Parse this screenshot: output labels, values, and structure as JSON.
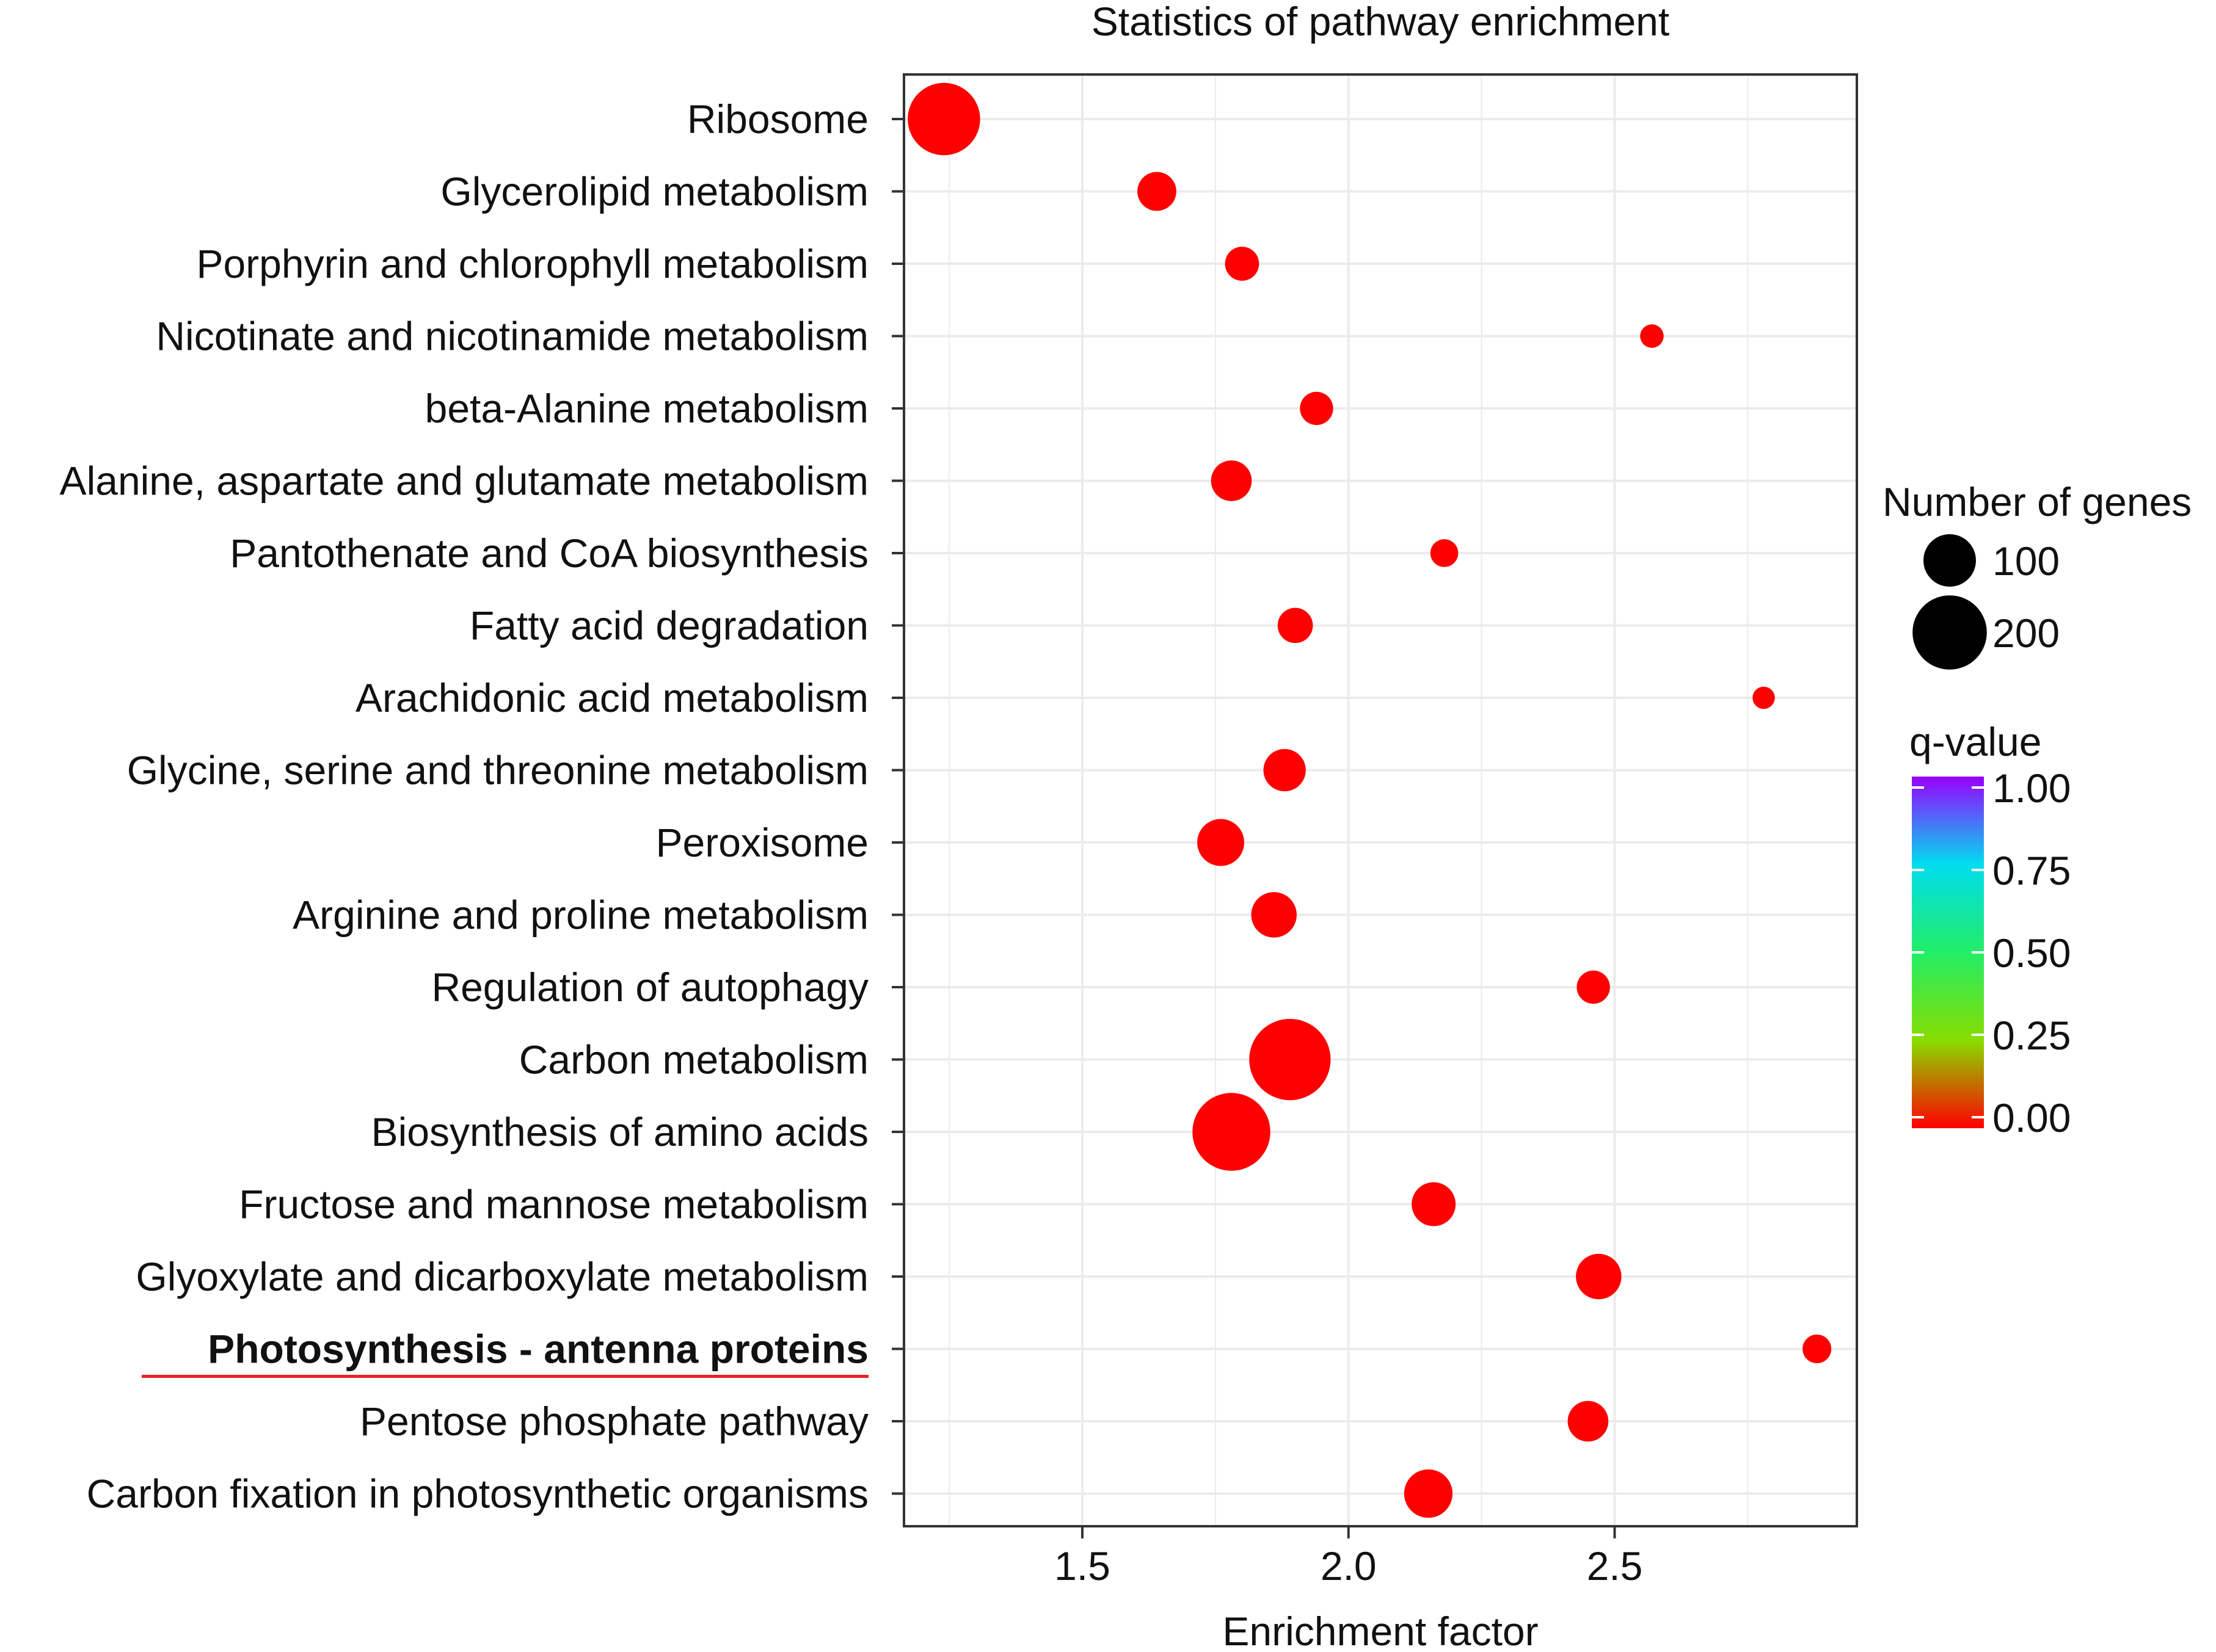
{
  "chart_data": {
    "type": "scatter",
    "title": "Statistics of pathway enrichment",
    "xlabel": "Enrichment factor",
    "ylabel": "",
    "xlim": [
      1.165,
      2.955
    ],
    "xticks": [
      1.5,
      2.0,
      2.5
    ],
    "xtick_labels": [
      "1.5",
      "2.0",
      "2.5"
    ],
    "grid": true,
    "highlighted_category": "Photosynthesis - antenna proteins",
    "categories": [
      "Ribosome",
      "Glycerolipid metabolism",
      "Porphyrin and chlorophyll metabolism",
      "Nicotinate and nicotinamide metabolism",
      "beta-Alanine metabolism",
      "Alanine, aspartate and glutamate metabolism",
      "Pantothenate and CoA biosynthesis",
      "Fatty acid degradation",
      "Arachidonic acid metabolism",
      "Glycine, serine and threonine metabolism",
      "Peroxisome",
      "Arginine and proline metabolism",
      "Regulation of autophagy",
      "Carbon metabolism",
      "Biosynthesis of amino acids",
      "Fructose and mannose metabolism",
      "Glyoxylate and dicarboxylate metabolism",
      "Photosynthesis - antenna proteins",
      "Pentose phosphate pathway",
      "Carbon fixation in photosynthetic organisms"
    ],
    "series": [
      {
        "name": "pathways",
        "x": [
          1.24,
          1.64,
          1.8,
          2.57,
          1.94,
          1.78,
          2.18,
          1.9,
          2.78,
          1.88,
          1.76,
          1.86,
          2.46,
          1.89,
          1.78,
          2.16,
          2.47,
          2.88,
          2.45,
          2.15
        ],
        "gene_count": [
          190,
          55,
          42,
          20,
          40,
          60,
          28,
          45,
          18,
          65,
          80,
          75,
          40,
          240,
          220,
          70,
          75,
          30,
          60,
          85
        ],
        "q_value": [
          0.0,
          0.0,
          0.0,
          0.0,
          0.0,
          0.0,
          0.0,
          0.0,
          0.0,
          0.0,
          0.0,
          0.0,
          0.0,
          0.0,
          0.0,
          0.0,
          0.0,
          0.0,
          0.0,
          0.0
        ]
      }
    ],
    "size_legend": {
      "title": "Number of genes",
      "entries": [
        {
          "label": "100",
          "value": 100
        },
        {
          "label": "200",
          "value": 200
        }
      ]
    },
    "color_legend": {
      "title": "q-value",
      "range": [
        0.0,
        1.0
      ],
      "ticks": [
        1.0,
        0.75,
        0.5,
        0.25,
        0.0
      ],
      "tick_labels": [
        "1.00",
        "0.75",
        "0.50",
        "0.25",
        "0.00"
      ],
      "stops": [
        {
          "value": 0.0,
          "color": "#ff0000"
        },
        {
          "value": 0.25,
          "color": "#88dd00"
        },
        {
          "value": 0.5,
          "color": "#22ee66"
        },
        {
          "value": 0.75,
          "color": "#00ddee"
        },
        {
          "value": 1.0,
          "color": "#9900ff"
        }
      ]
    },
    "colors": {
      "point_low_q": "#ff0000",
      "highlight_underline": "#e82020",
      "grid": "#ebebeb",
      "frame": "#333333",
      "size_legend_point": "#000000"
    }
  }
}
